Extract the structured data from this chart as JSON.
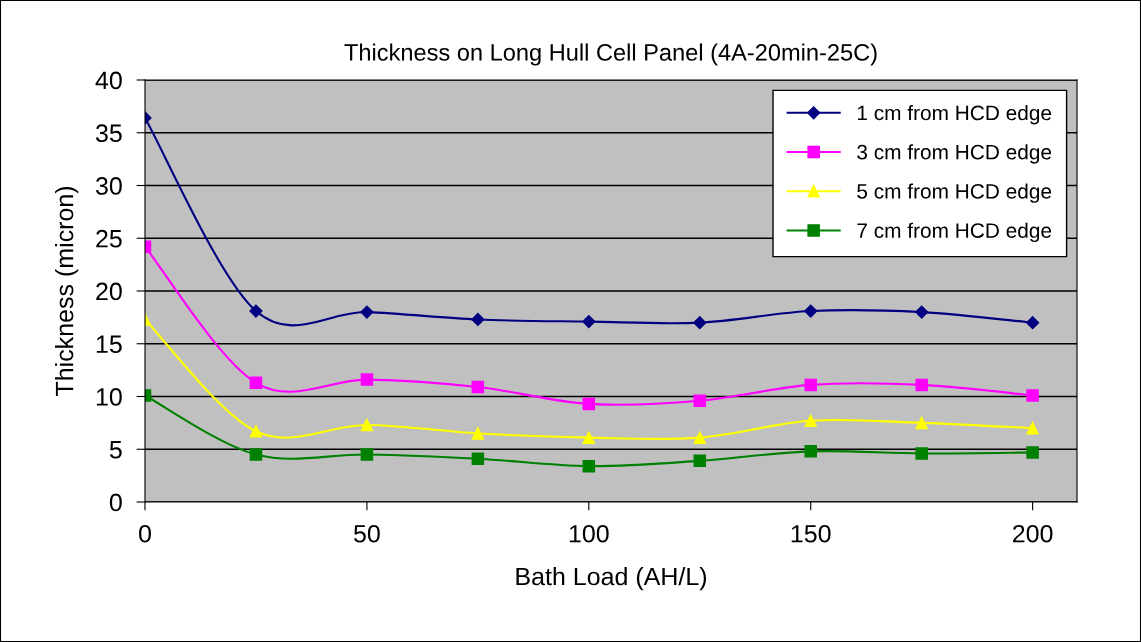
{
  "chart_data": {
    "type": "line",
    "title": "Thickness on Long Hull Cell Panel (4A-20min-25C)",
    "xlabel": "Bath Load (AH/L)",
    "ylabel": "Thickness (micron)",
    "x": [
      0,
      25,
      50,
      75,
      100,
      125,
      150,
      175,
      200
    ],
    "series": [
      {
        "name": "1 cm from HCD edge",
        "color": "#000080",
        "marker": "diamond",
        "values": [
          36.4,
          18.1,
          18.0,
          17.3,
          17.1,
          17.0,
          18.1,
          18.0,
          17.0
        ]
      },
      {
        "name": "3 cm from HCD edge",
        "color": "#ff00ff",
        "marker": "square",
        "values": [
          24.2,
          11.3,
          11.6,
          10.9,
          9.3,
          9.6,
          11.1,
          11.1,
          10.1
        ]
      },
      {
        "name": "5 cm from HCD edge",
        "color": "#ffff00",
        "marker": "triangle",
        "values": [
          17.3,
          6.7,
          7.3,
          6.5,
          6.1,
          6.1,
          7.7,
          7.5,
          7.0
        ]
      },
      {
        "name": "7 cm from HCD edge",
        "color": "#008000",
        "marker": "square",
        "values": [
          10.1,
          4.5,
          4.5,
          4.1,
          3.4,
          3.9,
          4.8,
          4.6,
          4.7
        ]
      }
    ],
    "xlim": [
      0,
      210
    ],
    "xticks": [
      0,
      50,
      100,
      150,
      200
    ],
    "ylim": [
      0,
      40
    ],
    "yticks": [
      0,
      5,
      10,
      15,
      20,
      25,
      30,
      35,
      40
    ],
    "grid": "y",
    "legend": "top right",
    "line_style": "solid"
  }
}
